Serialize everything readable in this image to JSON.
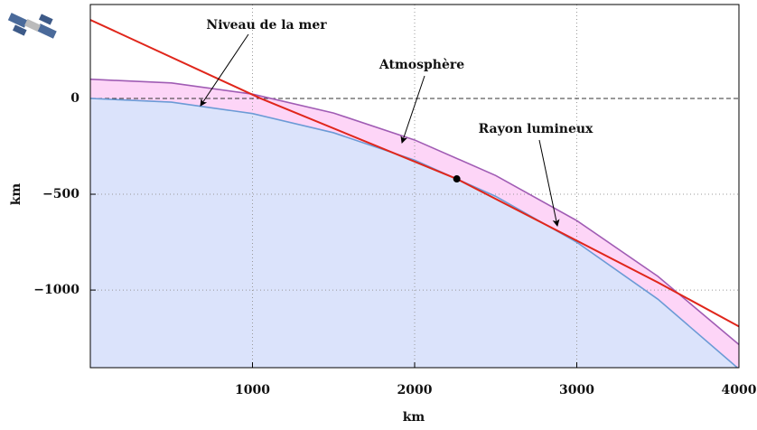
{
  "chart_data": {
    "type": "line",
    "x_label": "km",
    "y_label": "km",
    "x": [
      0,
      500,
      1000,
      1500,
      2000,
      2500,
      3000,
      3500,
      4000
    ],
    "series": [
      {
        "name": "Atmosphère",
        "color": "#a05cb4",
        "values": [
          100,
          80.6,
          22.3,
          -76.2,
          -216.8,
          -402.4,
          -637.4,
          -928.2,
          -1284.4
        ]
      },
      {
        "name": "Niveau de la mer",
        "color": "#6b9bd6",
        "values": [
          0,
          -19.6,
          -79.0,
          -179.1,
          -322.1,
          -511.0,
          -750.5,
          -1047.5,
          -1412.2
        ]
      }
    ],
    "ray": {
      "name": "Rayon lumineux",
      "color": "#e0261b",
      "x": [
        0,
        1050,
        2260,
        3500,
        4000
      ],
      "values": [
        410,
        0,
        -420,
        -960,
        -1190
      ]
    },
    "point": {
      "x": 2260,
      "y": -420
    },
    "xlim": [
      0,
      4000
    ],
    "ylim": [
      -1405,
      490
    ],
    "xticks": [
      1000,
      2000,
      3000,
      4000
    ],
    "yticks": [
      {
        "value": -1000,
        "label": "−1000"
      },
      {
        "value": -500,
        "label": "−500"
      },
      0
    ],
    "grid": true
  }
}
